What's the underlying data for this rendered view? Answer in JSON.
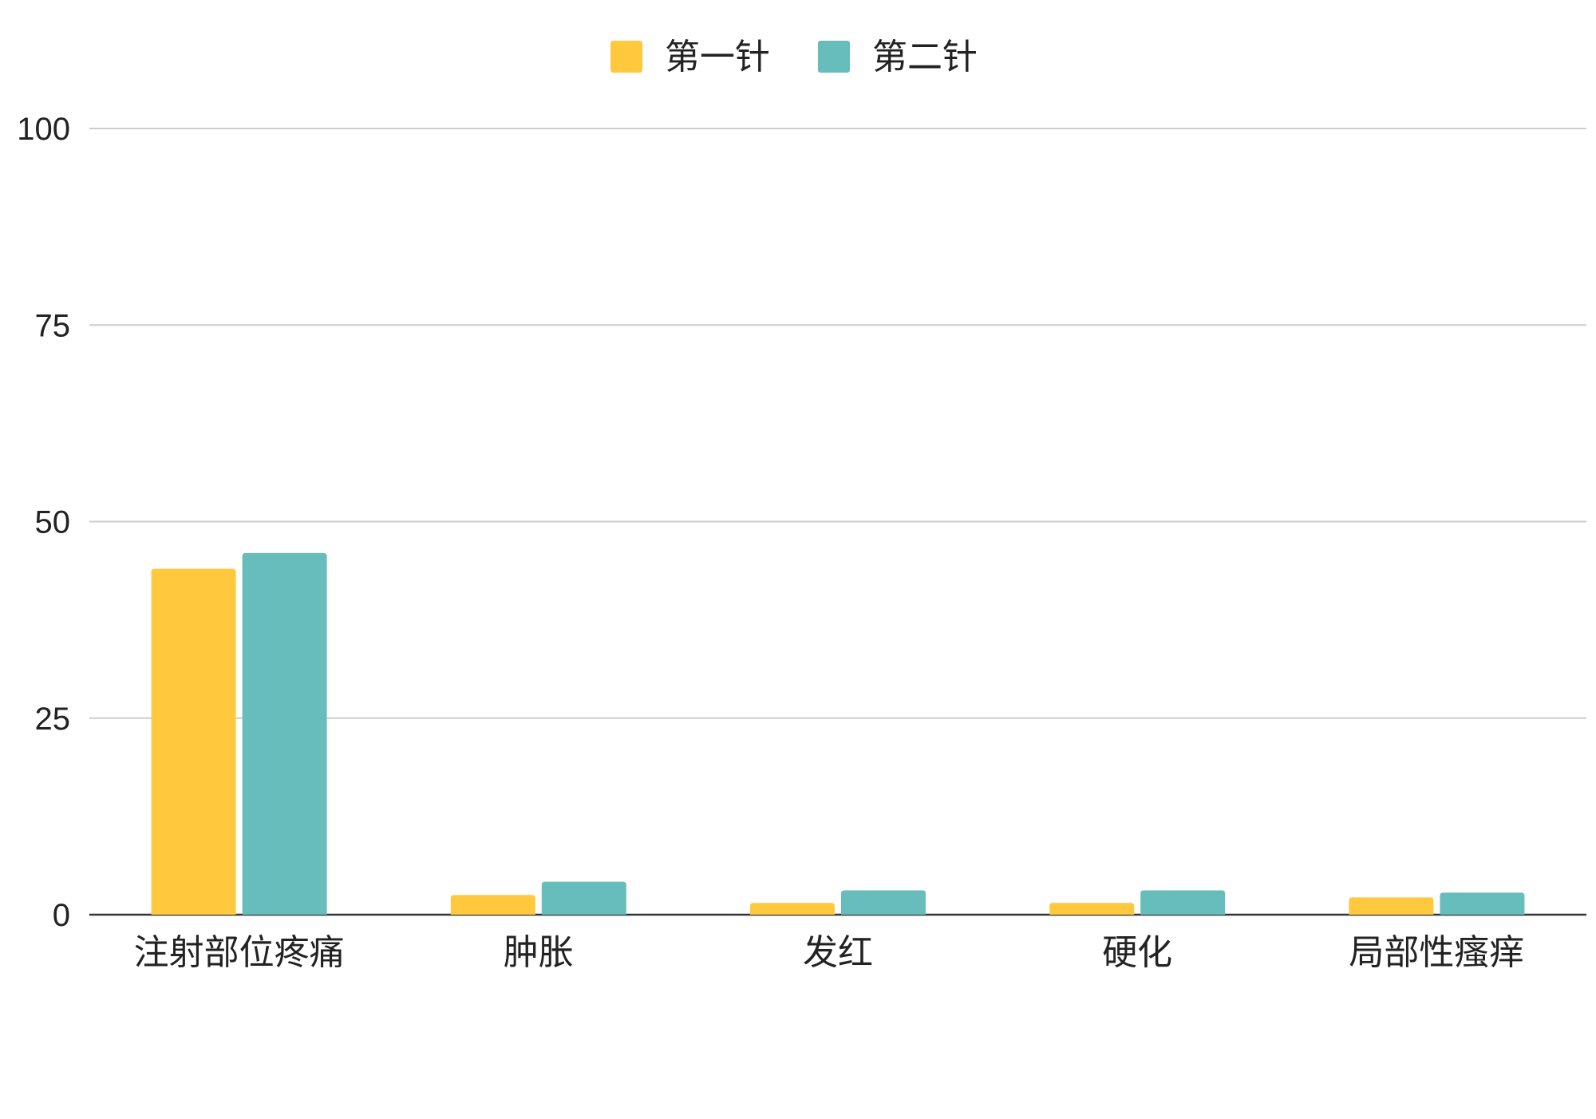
{
  "chart_data": {
    "type": "bar",
    "title": "",
    "xlabel": "",
    "ylabel": "",
    "categories": [
      "注射部位疼痛",
      "肿胀",
      "发红",
      "硬化",
      "局部性瘙痒"
    ],
    "series": [
      {
        "name": "第一针",
        "color": "#FFC83D",
        "values": [
          44,
          2.5,
          1.5,
          1.5,
          2.2
        ]
      },
      {
        "name": "第二针",
        "color": "#67BDBB",
        "values": [
          46,
          4.2,
          3.1,
          3.1,
          2.8
        ]
      }
    ],
    "ylim": [
      0,
      100
    ],
    "yticks": [
      "0",
      "25",
      "50",
      "75",
      "100"
    ],
    "grid": true,
    "legend_position": "top-center"
  }
}
